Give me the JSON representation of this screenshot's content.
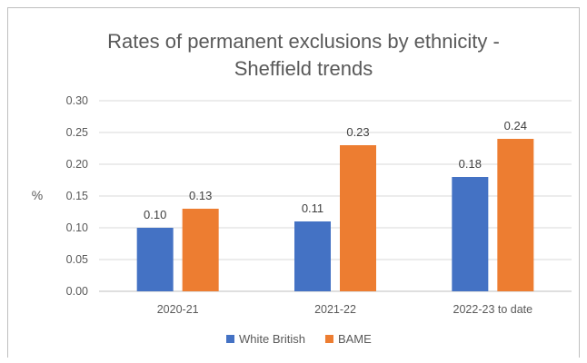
{
  "chart_data": {
    "type": "bar",
    "title_line1": "Rates of permanent exclusions by ethnicity -",
    "title_line2": "Sheffield trends",
    "ylabel": "%",
    "xlabel": "",
    "categories": [
      "2020-21",
      "2021-22",
      "2022-23 to date"
    ],
    "series": [
      {
        "name": "White British",
        "color": "#4472c4",
        "values": [
          0.1,
          0.11,
          0.18
        ],
        "labels": [
          "0.10",
          "0.11",
          "0.18"
        ]
      },
      {
        "name": "BAME",
        "color": "#ed7d31",
        "values": [
          0.13,
          0.23,
          0.24
        ],
        "labels": [
          "0.13",
          "0.23",
          "0.24"
        ]
      }
    ],
    "ylim": [
      0,
      0.3
    ],
    "yticks": [
      "0.00",
      "0.05",
      "0.10",
      "0.15",
      "0.20",
      "0.25",
      "0.30"
    ],
    "grid": true,
    "legend_position": "bottom"
  }
}
